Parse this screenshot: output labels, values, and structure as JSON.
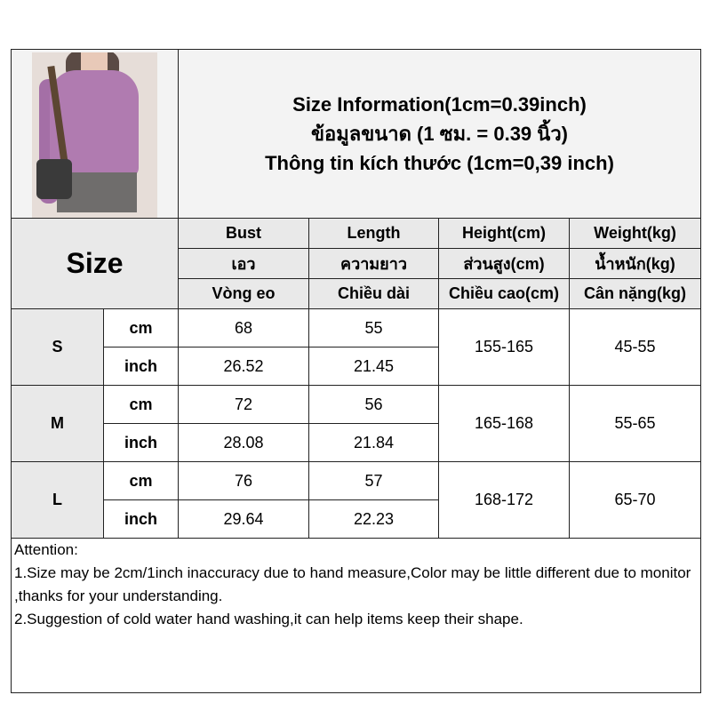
{
  "title_lines": [
    "Size Information(1cm=0.39inch)",
    "ข้อมูลขนาด (1 ซม. = 0.39 นิ้ว)",
    "Thông tin kích thước (1cm=0,39 inch)"
  ],
  "size_header": "Size",
  "columns": [
    [
      "Bust",
      "เอว",
      "Vòng eo"
    ],
    [
      "Length",
      "ความยาว",
      "Chiều dài"
    ],
    [
      "Height(cm)",
      "ส่วนสูง(cm)",
      "Chiều cao(cm)"
    ],
    [
      "Weight(kg)",
      "น้ำหนัก(kg)",
      "Cân nặng(kg)"
    ]
  ],
  "rows": [
    {
      "size": "S",
      "cm": {
        "unit": "cm",
        "bust": "68",
        "length": "55"
      },
      "inch": {
        "unit": "inch",
        "bust": "26.52",
        "length": "21.45"
      },
      "height": "155-165",
      "weight": "45-55"
    },
    {
      "size": "M",
      "cm": {
        "unit": "cm",
        "bust": "72",
        "length": "56"
      },
      "inch": {
        "unit": "inch",
        "bust": "28.08",
        "length": "21.84"
      },
      "height": "165-168",
      "weight": "55-65"
    },
    {
      "size": "L",
      "cm": {
        "unit": "cm",
        "bust": "76",
        "length": "57"
      },
      "inch": {
        "unit": "inch",
        "bust": "29.64",
        "length": "22.23"
      },
      "height": "168-172",
      "weight": "65-70"
    }
  ],
  "notes": [
    "Attention:",
    "1.Size may be 2cm/1inch inaccuracy due to hand measure,Color may be little different due to monitor ,thanks for your understanding.",
    "2.Suggestion of cold water hand washing,it can help items keep their shape."
  ],
  "colors": {
    "header_bg": "#e9e9e9",
    "title_bg": "#f3f3f3",
    "border": "#222222"
  }
}
